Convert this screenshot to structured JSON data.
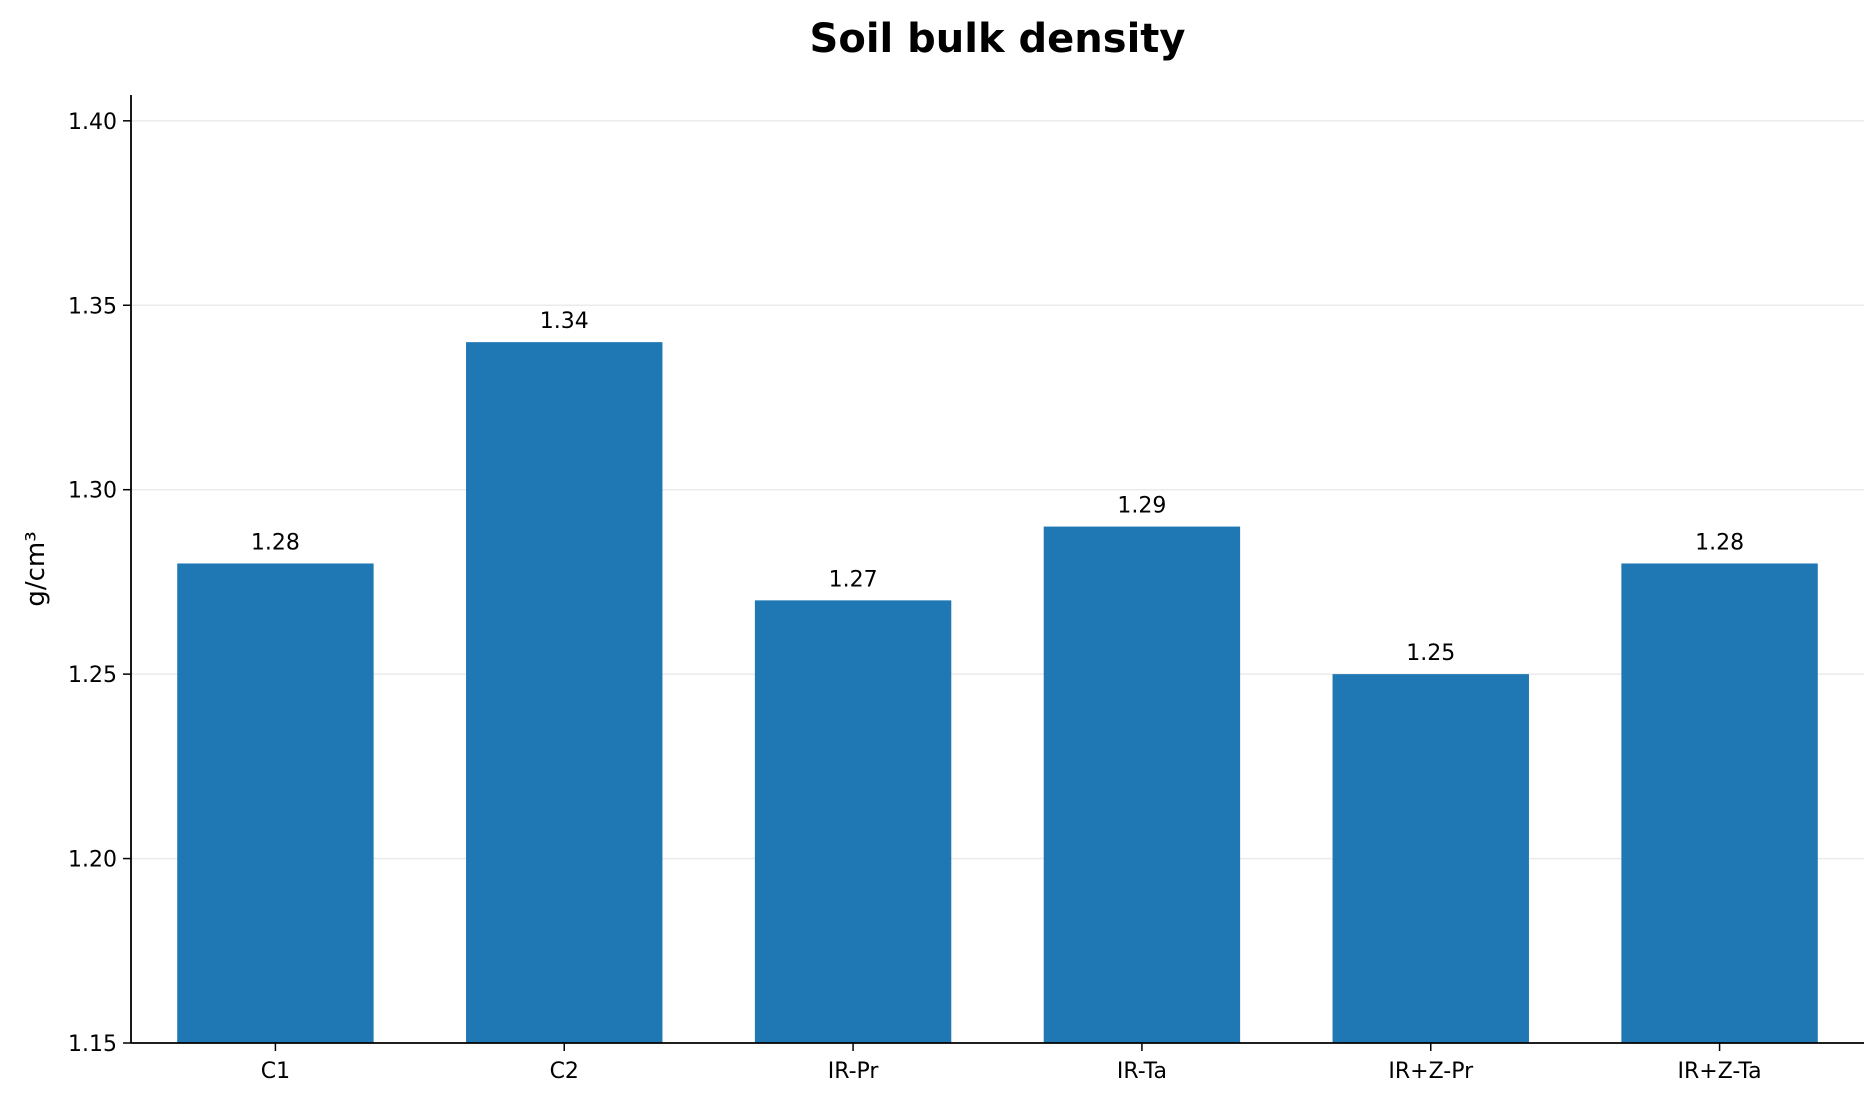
{
  "chart_data": {
    "type": "bar",
    "title": "Soil bulk density",
    "xlabel": "",
    "ylabel": "g/cm³",
    "categories": [
      "C1",
      "C2",
      "IR-Pr",
      "IR-Ta",
      "IR+Z-Pr",
      "IR+Z-Ta"
    ],
    "values": [
      1.28,
      1.34,
      1.27,
      1.29,
      1.25,
      1.28
    ],
    "value_labels": [
      "1.28",
      "1.34",
      "1.27",
      "1.29",
      "1.25",
      "1.28"
    ],
    "yticks": [
      1.15,
      1.2,
      1.25,
      1.3,
      1.35,
      1.4
    ],
    "ytick_labels": [
      "1.15",
      "1.20",
      "1.25",
      "1.30",
      "1.35",
      "1.40"
    ],
    "ylim": [
      1.15,
      1.407
    ],
    "grid": "horizontal",
    "legend": "none",
    "colors": {
      "bar": "#1f77b4",
      "grid": "#ebebeb",
      "axis": "#000000"
    }
  }
}
